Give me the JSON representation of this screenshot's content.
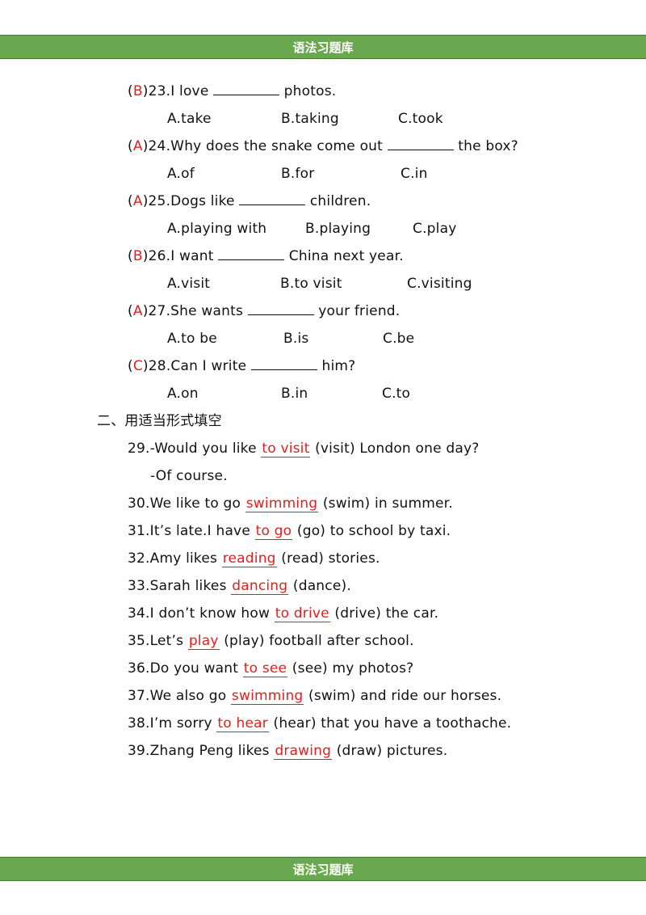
{
  "header": {
    "title": "语法习题库"
  },
  "footer": {
    "title": "语法习题库"
  },
  "choice": [
    {
      "answer": "B",
      "number": "23",
      "before": ".I love ",
      "after": " photos.",
      "options": [
        "A.take",
        "B.taking",
        "C.took"
      ]
    },
    {
      "answer": "A",
      "number": "24",
      "before": ".Why does the snake come out ",
      "after": " the box?",
      "options": [
        "A.of",
        "B.for",
        "C.in"
      ]
    },
    {
      "answer": "A",
      "number": "25",
      "before": ".Dogs like ",
      "after": " children.",
      "options": [
        "A.playing with",
        "B.playing",
        "C.play"
      ]
    },
    {
      "answer": "B",
      "number": "26",
      "before": ".I want ",
      "after": " China next year.",
      "options": [
        "A.visit",
        "B.to visit",
        "C.visiting"
      ]
    },
    {
      "answer": "A",
      "number": "27",
      "before": ".She wants ",
      "after": " your friend.",
      "options": [
        "A.to be",
        "B.is",
        "C.be"
      ]
    },
    {
      "answer": "C",
      "number": "28",
      "before": ".Can I write ",
      "after": " him?",
      "options": [
        "A.on",
        "B.in",
        "C.to"
      ]
    }
  ],
  "section2": {
    "title": "二、用适当形式填空"
  },
  "fill": [
    {
      "before": "29.-Would you like ",
      "answer": "to visit",
      "after": " (visit) London one day?"
    },
    {
      "before": "30.We like to go ",
      "answer": "swimming",
      "after": " (swim) in summer."
    },
    {
      "before": "31.It’s late.I have ",
      "answer": "to go",
      "after": " (go) to school by taxi."
    },
    {
      "before": "32.Amy likes ",
      "answer": "reading",
      "after": " (read) stories."
    },
    {
      "before": "33.Sarah likes ",
      "answer": "dancing",
      "after": " (dance)."
    },
    {
      "before": "34.I don’t know how ",
      "answer": "to drive",
      "after": " (drive) the car."
    },
    {
      "before": "35.Let’s ",
      "answer": "play",
      "after": " (play) football after school."
    },
    {
      "before": "36.Do you want ",
      "answer": "to see",
      "after": " (see) my photos?"
    },
    {
      "before": "37.We also go ",
      "answer": "swimming",
      "after": " (swim) and ride our horses."
    },
    {
      "before": "38.I’m sorry ",
      "answer": "to hear",
      "after": " (hear) that you have a toothache."
    },
    {
      "before": "39.Zhang Peng likes ",
      "answer": "drawing",
      "after": " (draw) pictures."
    }
  ],
  "fill_reply": "-Of course."
}
